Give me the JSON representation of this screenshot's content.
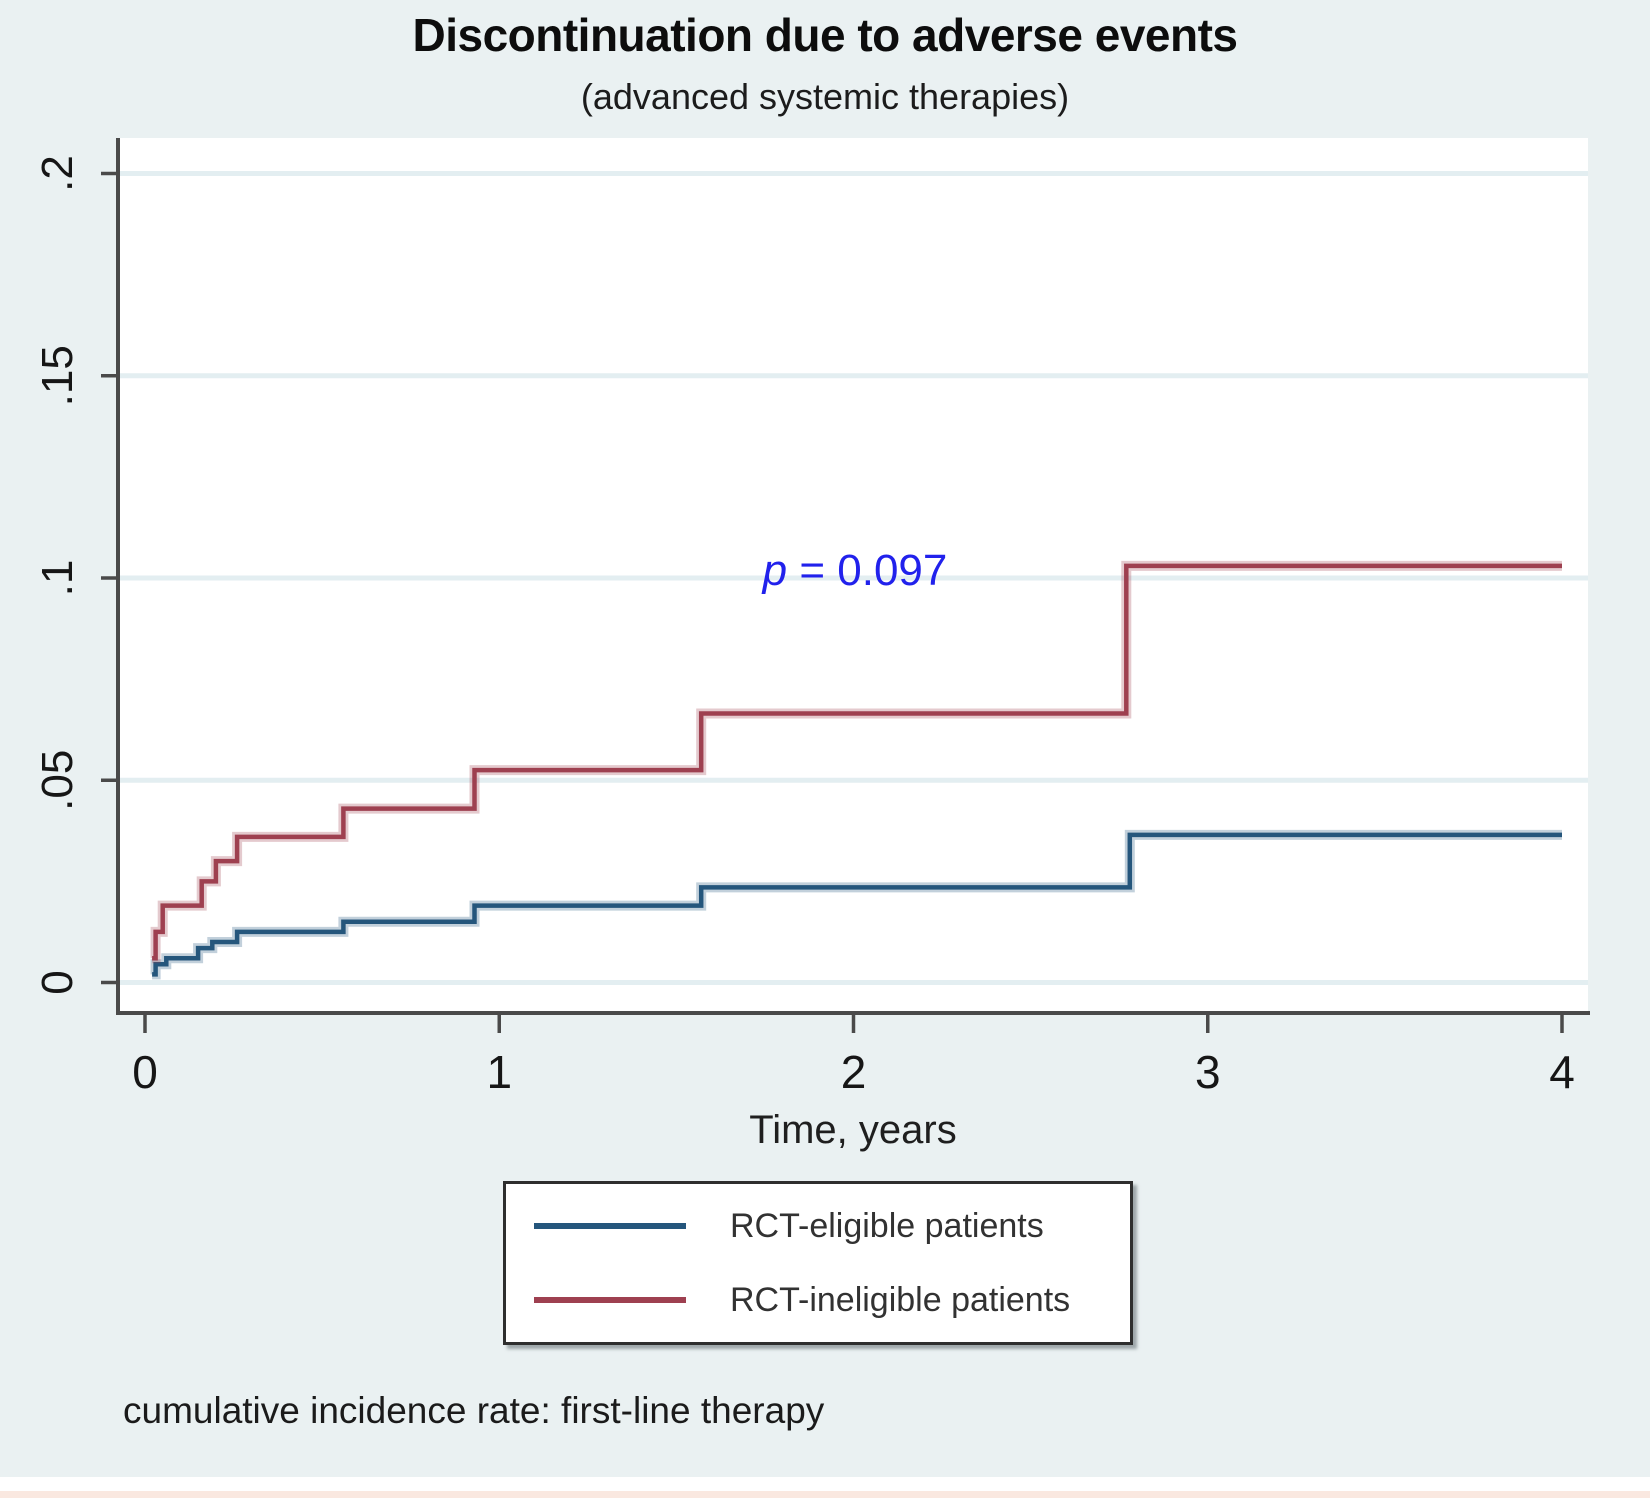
{
  "figure": {
    "title": "Discontinuation due to adverse events",
    "subtitle": "(advanced systemic therapies)",
    "caption": "cumulative incidence rate: first-line therapy"
  },
  "colors": {
    "background": "#EAF1F2",
    "plot_bg": "#FFFFFF",
    "grid": "#E3EEF1",
    "axis": "#4A4A4A",
    "tick_label": "#161616",
    "p_text": "#2121EC",
    "eligible_line": "#25567C",
    "ineligible_line": "#9E4050"
  },
  "chart_data": {
    "type": "line",
    "subtype": "step-cumulative-incidence",
    "title": "Discontinuation due to adverse events",
    "subtitle": "(advanced systemic therapies)",
    "xlabel": "Time, years",
    "ylabel": "",
    "xlim": [
      0,
      4
    ],
    "ylim": [
      0,
      0.2
    ],
    "grid": true,
    "legend_position": "below",
    "x_ticks": [
      {
        "v": 0,
        "label": "0"
      },
      {
        "v": 1,
        "label": "1"
      },
      {
        "v": 2,
        "label": "2"
      },
      {
        "v": 3,
        "label": "3"
      },
      {
        "v": 4,
        "label": "4"
      }
    ],
    "y_ticks": [
      {
        "v": 0,
        "label": "0"
      },
      {
        "v": 0.05,
        "label": ".05"
      },
      {
        "v": 0.1,
        "label": ".1"
      },
      {
        "v": 0.15,
        "label": ".15"
      },
      {
        "v": 0.2,
        "label": ".2"
      }
    ],
    "annotation": {
      "text": "p = 0.097",
      "p": "p",
      "rest": " = 0.097",
      "x": 2.0,
      "y": 0.1
    },
    "x_end": 4.0,
    "series": [
      {
        "name": "RCT-eligible patients",
        "color": "#25567C",
        "steps": [
          [
            0.02,
            0.002
          ],
          [
            0.03,
            0.0045
          ],
          [
            0.06,
            0.006
          ],
          [
            0.15,
            0.0085
          ],
          [
            0.19,
            0.01
          ],
          [
            0.26,
            0.0125
          ],
          [
            0.56,
            0.015
          ],
          [
            0.93,
            0.019
          ],
          [
            1.57,
            0.0235
          ],
          [
            2.78,
            0.0365
          ]
        ]
      },
      {
        "name": "RCT-ineligible patients",
        "color": "#9E4050",
        "steps": [
          [
            0.02,
            0.006
          ],
          [
            0.03,
            0.0125
          ],
          [
            0.05,
            0.019
          ],
          [
            0.16,
            0.025
          ],
          [
            0.2,
            0.03
          ],
          [
            0.26,
            0.036
          ],
          [
            0.56,
            0.043
          ],
          [
            0.93,
            0.0525
          ],
          [
            1.57,
            0.0665
          ],
          [
            2.77,
            0.103
          ]
        ]
      }
    ]
  }
}
